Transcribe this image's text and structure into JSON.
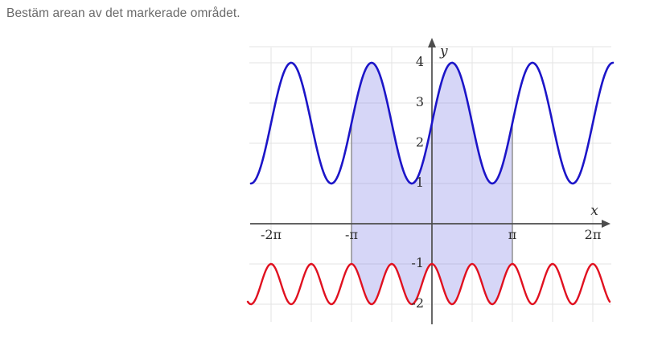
{
  "title": "Bestäm arean av det markerade området.",
  "colors": {
    "title_text": "#6a6a6a",
    "axis": "#4d4d4d",
    "grid": "#e3e3e3",
    "tick_text": "#2b2b2b",
    "blue_curve": "#1c15c8",
    "red_curve": "#e01120",
    "region_fill": "rgba(108,108,228,0.28)",
    "region_edge": "#8a8a8a"
  },
  "chart_data": {
    "type": "line",
    "title": "",
    "xlabel": "x",
    "ylabel": "y",
    "x_ticks": [
      {
        "label": "-2π",
        "value_pi": -2
      },
      {
        "label": "-π",
        "value_pi": -1
      },
      {
        "label": "π",
        "value_pi": 1
      },
      {
        "label": "2π",
        "value_pi": 2
      }
    ],
    "y_ticks": [
      4,
      3,
      2,
      1,
      -1,
      -2
    ],
    "x_range_pi": [
      -2.29,
      2.25
    ],
    "ylim": [
      -2.45,
      4.4
    ],
    "grid": true,
    "grid_spacing": {
      "x_pi_units": 0.5,
      "y_units": 1
    },
    "legend": "none",
    "series": [
      {
        "name": "upper-blue-curve",
        "color": "#1c15c8",
        "formula": "y = 2.5 + 1.5*sin(2x)",
        "type": "sin",
        "midline": 2.5,
        "amplitude": 1.5,
        "frequency": 2,
        "max": 4,
        "min": 1,
        "period_pi": 1,
        "x_start_pi": -2.25,
        "x_end_pi": 2.25,
        "width": 2.6
      },
      {
        "name": "lower-red-curve",
        "color": "#e01120",
        "formula": "y = -1.5 + 0.5*cos(4x)",
        "type": "cos",
        "midline": -1.5,
        "amplitude": 0.5,
        "frequency": 4,
        "max": -1,
        "min": -2,
        "period_pi": 0.5,
        "x_start_pi": -2.29,
        "x_end_pi": 2.21,
        "width": 2.4
      }
    ],
    "shaded_region": {
      "from_pi": -1,
      "to_pi": 1,
      "upper": "upper-blue-curve",
      "lower": "lower-red-curve",
      "fill": "rgba(108,108,228,0.28)",
      "edge": "#8a8a8a",
      "edge_labels": [
        "-π",
        "π"
      ]
    }
  }
}
